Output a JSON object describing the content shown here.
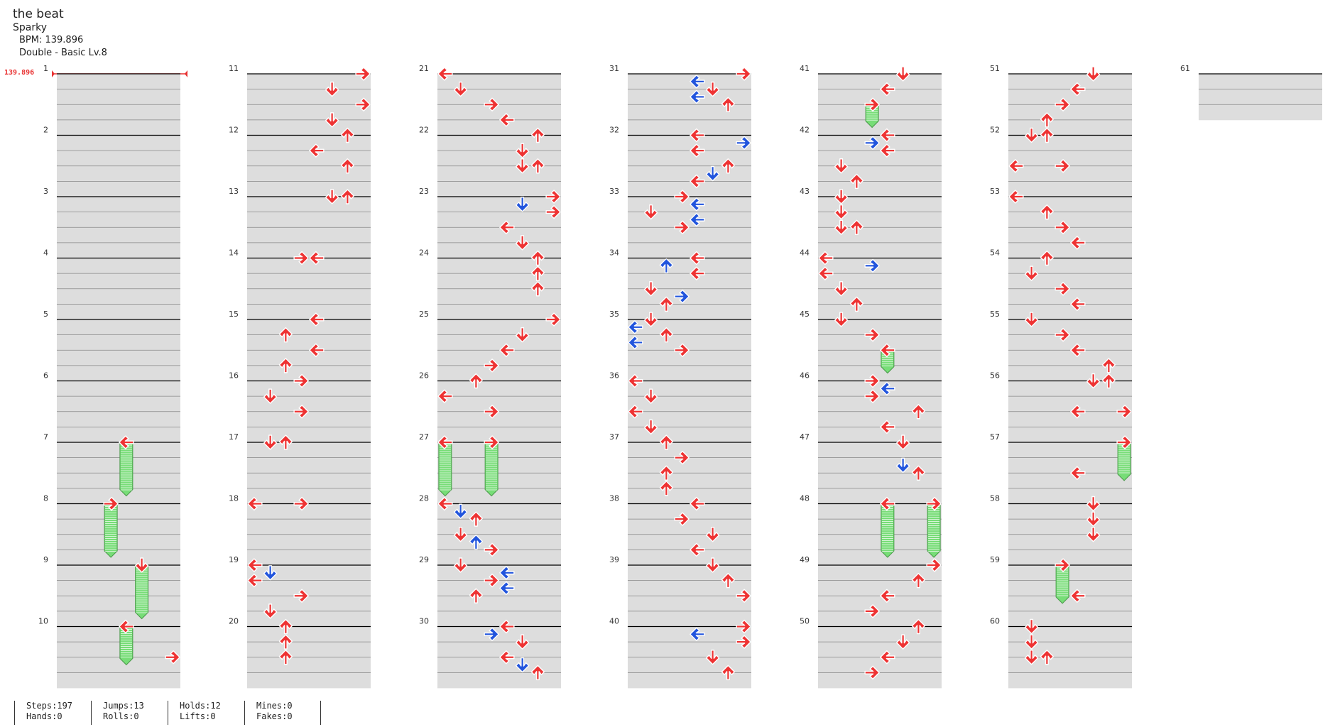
{
  "song": {
    "title": "the beat",
    "artist": "Sparky",
    "bpm_text": "BPM: 139.896",
    "difficulty": "Double - Basic Lv.8",
    "bpm_marker": "139.896"
  },
  "measures": [
    {
      "n": "1",
      "notes": []
    },
    {
      "n": "2",
      "notes": []
    },
    {
      "n": "3",
      "notes": []
    },
    {
      "n": "4",
      "notes": []
    },
    {
      "n": "5",
      "notes": []
    },
    {
      "n": "6",
      "notes": []
    },
    {
      "n": "7",
      "notes": [
        {
          "b": 0,
          "l": 4,
          "c": "r",
          "h": 3.4
        }
      ]
    },
    {
      "n": "8",
      "notes": [
        {
          "b": 0,
          "l": 3,
          "c": "r",
          "h": 3.4
        }
      ]
    },
    {
      "n": "9",
      "notes": [
        {
          "b": 0,
          "l": 5,
          "c": "r",
          "h": 3.4
        }
      ]
    },
    {
      "n": "10",
      "notes": [
        {
          "b": 0,
          "l": 4,
          "c": "r",
          "h": 2.4
        },
        {
          "b": 2,
          "l": 7,
          "c": "r"
        }
      ]
    },
    {
      "n": "11",
      "notes": [
        {
          "b": 0,
          "l": 7,
          "c": "r"
        },
        {
          "b": 1,
          "l": 5,
          "c": "r"
        },
        {
          "b": 2,
          "l": 7,
          "c": "r"
        },
        {
          "b": 3,
          "l": 5,
          "c": "r"
        }
      ]
    },
    {
      "n": "12",
      "notes": [
        {
          "b": 0,
          "l": 6,
          "c": "r"
        },
        {
          "b": 1,
          "l": 4,
          "c": "r"
        },
        {
          "b": 2,
          "l": 6,
          "c": "r"
        }
      ]
    },
    {
      "n": "13",
      "notes": [
        {
          "b": 0,
          "l": 5,
          "c": "r"
        },
        {
          "b": 0,
          "l": 6,
          "c": "r"
        }
      ]
    },
    {
      "n": "14",
      "notes": [
        {
          "b": 0,
          "l": 3,
          "c": "r"
        },
        {
          "b": 0,
          "l": 4,
          "c": "r"
        }
      ]
    },
    {
      "n": "15",
      "notes": [
        {
          "b": 0,
          "l": 4,
          "c": "r"
        },
        {
          "b": 1,
          "l": 2,
          "c": "r"
        },
        {
          "b": 2,
          "l": 4,
          "c": "r"
        },
        {
          "b": 3,
          "l": 2,
          "c": "r"
        }
      ]
    },
    {
      "n": "16",
      "notes": [
        {
          "b": 0,
          "l": 3,
          "c": "r"
        },
        {
          "b": 1,
          "l": 1,
          "c": "r"
        },
        {
          "b": 2,
          "l": 3,
          "c": "r"
        }
      ]
    },
    {
      "n": "17",
      "notes": [
        {
          "b": 0,
          "l": 1,
          "c": "r"
        },
        {
          "b": 0,
          "l": 2,
          "c": "r"
        }
      ]
    },
    {
      "n": "18",
      "notes": [
        {
          "b": 0,
          "l": 0,
          "c": "r"
        },
        {
          "b": 0,
          "l": 3,
          "c": "r"
        }
      ]
    },
    {
      "n": "19",
      "notes": [
        {
          "b": 0,
          "l": 0,
          "c": "r"
        },
        {
          "b": 0.5,
          "l": 1,
          "c": "b"
        },
        {
          "b": 1,
          "l": 0,
          "c": "r"
        },
        {
          "b": 2,
          "l": 3,
          "c": "r"
        },
        {
          "b": 3,
          "l": 1,
          "c": "r"
        }
      ]
    },
    {
      "n": "20",
      "notes": [
        {
          "b": 0,
          "l": 2,
          "c": "r"
        },
        {
          "b": 1,
          "l": 2,
          "c": "r"
        },
        {
          "b": 2,
          "l": 2,
          "c": "r"
        }
      ]
    },
    {
      "n": "21",
      "notes": [
        {
          "b": 0,
          "l": 0,
          "c": "r"
        },
        {
          "b": 1,
          "l": 1,
          "c": "r"
        },
        {
          "b": 2,
          "l": 3,
          "c": "r"
        },
        {
          "b": 3,
          "l": 4,
          "c": "r"
        }
      ]
    },
    {
      "n": "22",
      "notes": [
        {
          "b": 0,
          "l": 6,
          "c": "r"
        },
        {
          "b": 1,
          "l": 5,
          "c": "r"
        },
        {
          "b": 2,
          "l": 5,
          "c": "r"
        },
        {
          "b": 2,
          "l": 6,
          "c": "r"
        }
      ]
    },
    {
      "n": "23",
      "notes": [
        {
          "b": 0,
          "l": 7,
          "c": "r"
        },
        {
          "b": 0.5,
          "l": 5,
          "c": "b"
        },
        {
          "b": 1,
          "l": 7,
          "c": "r"
        },
        {
          "b": 2,
          "l": 4,
          "c": "r"
        },
        {
          "b": 3,
          "l": 5,
          "c": "r"
        }
      ]
    },
    {
      "n": "24",
      "notes": [
        {
          "b": 0,
          "l": 6,
          "c": "r"
        },
        {
          "b": 1,
          "l": 6,
          "c": "r"
        },
        {
          "b": 2,
          "l": 6,
          "c": "r"
        }
      ]
    },
    {
      "n": "25",
      "notes": [
        {
          "b": 0,
          "l": 7,
          "c": "r"
        },
        {
          "b": 1,
          "l": 5,
          "c": "r"
        },
        {
          "b": 2,
          "l": 4,
          "c": "r"
        },
        {
          "b": 3,
          "l": 3,
          "c": "r"
        }
      ]
    },
    {
      "n": "26",
      "notes": [
        {
          "b": 0,
          "l": 2,
          "c": "r"
        },
        {
          "b": 1,
          "l": 0,
          "c": "r"
        },
        {
          "b": 2,
          "l": 3,
          "c": "r"
        }
      ]
    },
    {
      "n": "27",
      "notes": [
        {
          "b": 0,
          "l": 0,
          "c": "r",
          "h": 3.4
        },
        {
          "b": 0,
          "l": 3,
          "c": "r",
          "h": 3.4
        }
      ]
    },
    {
      "n": "28",
      "notes": [
        {
          "b": 0,
          "l": 0,
          "c": "r"
        },
        {
          "b": 0.5,
          "l": 1,
          "c": "b"
        },
        {
          "b": 1,
          "l": 2,
          "c": "r"
        },
        {
          "b": 2,
          "l": 1,
          "c": "r"
        },
        {
          "b": 2.5,
          "l": 2,
          "c": "b"
        },
        {
          "b": 3,
          "l": 3,
          "c": "r"
        }
      ]
    },
    {
      "n": "29",
      "notes": [
        {
          "b": 0,
          "l": 1,
          "c": "r"
        },
        {
          "b": 0.5,
          "l": 4,
          "c": "b"
        },
        {
          "b": 1,
          "l": 3,
          "c": "r"
        },
        {
          "b": 1.5,
          "l": 4,
          "c": "b"
        },
        {
          "b": 2,
          "l": 2,
          "c": "r"
        }
      ]
    },
    {
      "n": "30",
      "notes": [
        {
          "b": 0,
          "l": 4,
          "c": "r"
        },
        {
          "b": 0.5,
          "l": 3,
          "c": "b"
        },
        {
          "b": 1,
          "l": 5,
          "c": "r"
        },
        {
          "b": 2,
          "l": 4,
          "c": "r"
        },
        {
          "b": 2.5,
          "l": 5,
          "c": "b"
        },
        {
          "b": 3,
          "l": 6,
          "c": "r"
        }
      ]
    },
    {
      "n": "31",
      "notes": [
        {
          "b": 0,
          "l": 7,
          "c": "r"
        },
        {
          "b": 0.5,
          "l": 4,
          "c": "b"
        },
        {
          "b": 1,
          "l": 5,
          "c": "r"
        },
        {
          "b": 1.5,
          "l": 4,
          "c": "b"
        },
        {
          "b": 2,
          "l": 6,
          "c": "r"
        }
      ]
    },
    {
      "n": "32",
      "notes": [
        {
          "b": 0,
          "l": 4,
          "c": "r"
        },
        {
          "b": 0.5,
          "l": 7,
          "c": "b"
        },
        {
          "b": 1,
          "l": 4,
          "c": "r"
        },
        {
          "b": 2,
          "l": 6,
          "c": "r"
        },
        {
          "b": 2.5,
          "l": 5,
          "c": "b"
        },
        {
          "b": 3,
          "l": 4,
          "c": "r"
        }
      ]
    },
    {
      "n": "33",
      "notes": [
        {
          "b": 0,
          "l": 3,
          "c": "r"
        },
        {
          "b": 0.5,
          "l": 4,
          "c": "b"
        },
        {
          "b": 1,
          "l": 1,
          "c": "r"
        },
        {
          "b": 1.5,
          "l": 4,
          "c": "b"
        },
        {
          "b": 2,
          "l": 3,
          "c": "r"
        }
      ]
    },
    {
      "n": "34",
      "notes": [
        {
          "b": 0,
          "l": 4,
          "c": "r"
        },
        {
          "b": 0.5,
          "l": 2,
          "c": "b"
        },
        {
          "b": 1,
          "l": 4,
          "c": "r"
        },
        {
          "b": 2,
          "l": 1,
          "c": "r"
        },
        {
          "b": 2.5,
          "l": 3,
          "c": "b"
        },
        {
          "b": 3,
          "l": 2,
          "c": "r"
        }
      ]
    },
    {
      "n": "35",
      "notes": [
        {
          "b": 0,
          "l": 1,
          "c": "r"
        },
        {
          "b": 0.5,
          "l": 0,
          "c": "b"
        },
        {
          "b": 1,
          "l": 2,
          "c": "r"
        },
        {
          "b": 1.5,
          "l": 0,
          "c": "b"
        },
        {
          "b": 2,
          "l": 3,
          "c": "r"
        }
      ]
    },
    {
      "n": "36",
      "notes": [
        {
          "b": 0,
          "l": 0,
          "c": "r"
        },
        {
          "b": 1,
          "l": 1,
          "c": "r"
        },
        {
          "b": 2,
          "l": 0,
          "c": "r"
        },
        {
          "b": 3,
          "l": 1,
          "c": "r"
        }
      ]
    },
    {
      "n": "37",
      "notes": [
        {
          "b": 0,
          "l": 2,
          "c": "r"
        },
        {
          "b": 1,
          "l": 3,
          "c": "r"
        },
        {
          "b": 2,
          "l": 2,
          "c": "r"
        },
        {
          "b": 3,
          "l": 2,
          "c": "r"
        }
      ]
    },
    {
      "n": "38",
      "notes": [
        {
          "b": 0,
          "l": 4,
          "c": "r"
        },
        {
          "b": 1,
          "l": 3,
          "c": "r"
        },
        {
          "b": 2,
          "l": 5,
          "c": "r"
        },
        {
          "b": 3,
          "l": 4,
          "c": "r"
        }
      ]
    },
    {
      "n": "39",
      "notes": [
        {
          "b": 0,
          "l": 5,
          "c": "r"
        },
        {
          "b": 1,
          "l": 6,
          "c": "r"
        },
        {
          "b": 2,
          "l": 7,
          "c": "r"
        }
      ]
    },
    {
      "n": "40",
      "notes": [
        {
          "b": 0,
          "l": 7,
          "c": "r"
        },
        {
          "b": 0.5,
          "l": 4,
          "c": "b"
        },
        {
          "b": 1,
          "l": 7,
          "c": "r"
        },
        {
          "b": 2,
          "l": 5,
          "c": "r"
        },
        {
          "b": 3,
          "l": 6,
          "c": "r"
        }
      ]
    },
    {
      "n": "41",
      "notes": [
        {
          "b": 0,
          "l": 5,
          "c": "r"
        },
        {
          "b": 1,
          "l": 4,
          "c": "r"
        },
        {
          "b": 2,
          "l": 3,
          "c": "r",
          "h": 1.4
        }
      ]
    },
    {
      "n": "42",
      "notes": [
        {
          "b": 0,
          "l": 4,
          "c": "r"
        },
        {
          "b": 0.5,
          "l": 3,
          "c": "b"
        },
        {
          "b": 1,
          "l": 4,
          "c": "r"
        },
        {
          "b": 2,
          "l": 1,
          "c": "r"
        },
        {
          "b": 3,
          "l": 2,
          "c": "r"
        }
      ]
    },
    {
      "n": "43",
      "notes": [
        {
          "b": 0,
          "l": 1,
          "c": "r"
        },
        {
          "b": 1,
          "l": 1,
          "c": "r"
        },
        {
          "b": 2,
          "l": 1,
          "c": "r"
        },
        {
          "b": 2,
          "l": 2,
          "c": "r"
        }
      ]
    },
    {
      "n": "44",
      "notes": [
        {
          "b": 0,
          "l": 0,
          "c": "r"
        },
        {
          "b": 0.5,
          "l": 3,
          "c": "b"
        },
        {
          "b": 1,
          "l": 0,
          "c": "r"
        },
        {
          "b": 2,
          "l": 1,
          "c": "r"
        },
        {
          "b": 3,
          "l": 2,
          "c": "r"
        }
      ]
    },
    {
      "n": "45",
      "notes": [
        {
          "b": 0,
          "l": 1,
          "c": "r"
        },
        {
          "b": 1,
          "l": 3,
          "c": "r"
        },
        {
          "b": 2,
          "l": 4,
          "c": "r",
          "h": 1.4
        }
      ]
    },
    {
      "n": "46",
      "notes": [
        {
          "b": 0,
          "l": 3,
          "c": "r"
        },
        {
          "b": 0.5,
          "l": 4,
          "c": "b"
        },
        {
          "b": 1,
          "l": 3,
          "c": "r"
        },
        {
          "b": 2,
          "l": 6,
          "c": "r"
        },
        {
          "b": 3,
          "l": 4,
          "c": "r"
        }
      ]
    },
    {
      "n": "47",
      "notes": [
        {
          "b": 0,
          "l": 5,
          "c": "r"
        },
        {
          "b": 1.5,
          "l": 5,
          "c": "b"
        },
        {
          "b": 2,
          "l": 6,
          "c": "r"
        }
      ]
    },
    {
      "n": "48",
      "notes": [
        {
          "b": 0,
          "l": 4,
          "c": "r",
          "h": 3.4
        },
        {
          "b": 0,
          "l": 7,
          "c": "r",
          "h": 3.4
        }
      ]
    },
    {
      "n": "49",
      "notes": [
        {
          "b": 0,
          "l": 7,
          "c": "r"
        },
        {
          "b": 1,
          "l": 6,
          "c": "r"
        },
        {
          "b": 2,
          "l": 4,
          "c": "r"
        },
        {
          "b": 3,
          "l": 3,
          "c": "r"
        }
      ]
    },
    {
      "n": "50",
      "notes": [
        {
          "b": 0,
          "l": 6,
          "c": "r"
        },
        {
          "b": 1,
          "l": 5,
          "c": "r"
        },
        {
          "b": 2,
          "l": 4,
          "c": "r"
        },
        {
          "b": 3,
          "l": 3,
          "c": "r"
        }
      ]
    },
    {
      "n": "51",
      "notes": [
        {
          "b": 0,
          "l": 5,
          "c": "r"
        },
        {
          "b": 1,
          "l": 4,
          "c": "r"
        },
        {
          "b": 2,
          "l": 3,
          "c": "r"
        },
        {
          "b": 3,
          "l": 2,
          "c": "r"
        }
      ]
    },
    {
      "n": "52",
      "notes": [
        {
          "b": 0,
          "l": 1,
          "c": "r"
        },
        {
          "b": 0,
          "l": 2,
          "c": "r"
        },
        {
          "b": 2,
          "l": 0,
          "c": "r"
        },
        {
          "b": 2,
          "l": 3,
          "c": "r"
        }
      ]
    },
    {
      "n": "53",
      "notes": [
        {
          "b": 0,
          "l": 0,
          "c": "r"
        },
        {
          "b": 1,
          "l": 2,
          "c": "r"
        },
        {
          "b": 2,
          "l": 3,
          "c": "r"
        },
        {
          "b": 3,
          "l": 4,
          "c": "r"
        }
      ]
    },
    {
      "n": "54",
      "notes": [
        {
          "b": 0,
          "l": 2,
          "c": "r"
        },
        {
          "b": 1,
          "l": 1,
          "c": "r"
        },
        {
          "b": 2,
          "l": 3,
          "c": "r"
        },
        {
          "b": 3,
          "l": 4,
          "c": "r"
        }
      ]
    },
    {
      "n": "55",
      "notes": [
        {
          "b": 0,
          "l": 1,
          "c": "r"
        },
        {
          "b": 1,
          "l": 3,
          "c": "r"
        },
        {
          "b": 2,
          "l": 4,
          "c": "r"
        },
        {
          "b": 3,
          "l": 6,
          "c": "r"
        }
      ]
    },
    {
      "n": "56",
      "notes": [
        {
          "b": 0,
          "l": 5,
          "c": "r"
        },
        {
          "b": 0,
          "l": 6,
          "c": "r"
        },
        {
          "b": 2,
          "l": 4,
          "c": "r"
        },
        {
          "b": 2,
          "l": 7,
          "c": "r"
        }
      ]
    },
    {
      "n": "57",
      "notes": [
        {
          "b": 0,
          "l": 7,
          "c": "r",
          "h": 2.4
        },
        {
          "b": 2,
          "l": 4,
          "c": "r"
        }
      ]
    },
    {
      "n": "58",
      "notes": [
        {
          "b": 0,
          "l": 5,
          "c": "r"
        },
        {
          "b": 1,
          "l": 5,
          "c": "r"
        },
        {
          "b": 2,
          "l": 5,
          "c": "r"
        }
      ]
    },
    {
      "n": "59",
      "notes": [
        {
          "b": 0,
          "l": 3,
          "c": "r",
          "h": 2.4
        },
        {
          "b": 2,
          "l": 4,
          "c": "r"
        }
      ]
    },
    {
      "n": "60",
      "notes": [
        {
          "b": 0,
          "l": 1,
          "c": "r"
        },
        {
          "b": 1,
          "l": 1,
          "c": "r"
        },
        {
          "b": 2,
          "l": 1,
          "c": "r"
        },
        {
          "b": 2,
          "l": 2,
          "c": "r"
        }
      ]
    },
    {
      "n": "61",
      "notes": []
    }
  ],
  "stats": {
    "steps": "Steps:197",
    "hands": "Hands:0",
    "jumps": "Jumps:13",
    "rolls": "Rolls:0",
    "holds": "Holds:12",
    "lifts": "Lifts:0",
    "mines": "Mines:0",
    "fakes": "Fakes:0"
  },
  "colors": {
    "arrow_red": "#ee3333",
    "arrow_blue": "#2255dd",
    "hold_green": "#77dd77",
    "lane_gray": "#dddddd",
    "bpm_red": "#e83030"
  }
}
